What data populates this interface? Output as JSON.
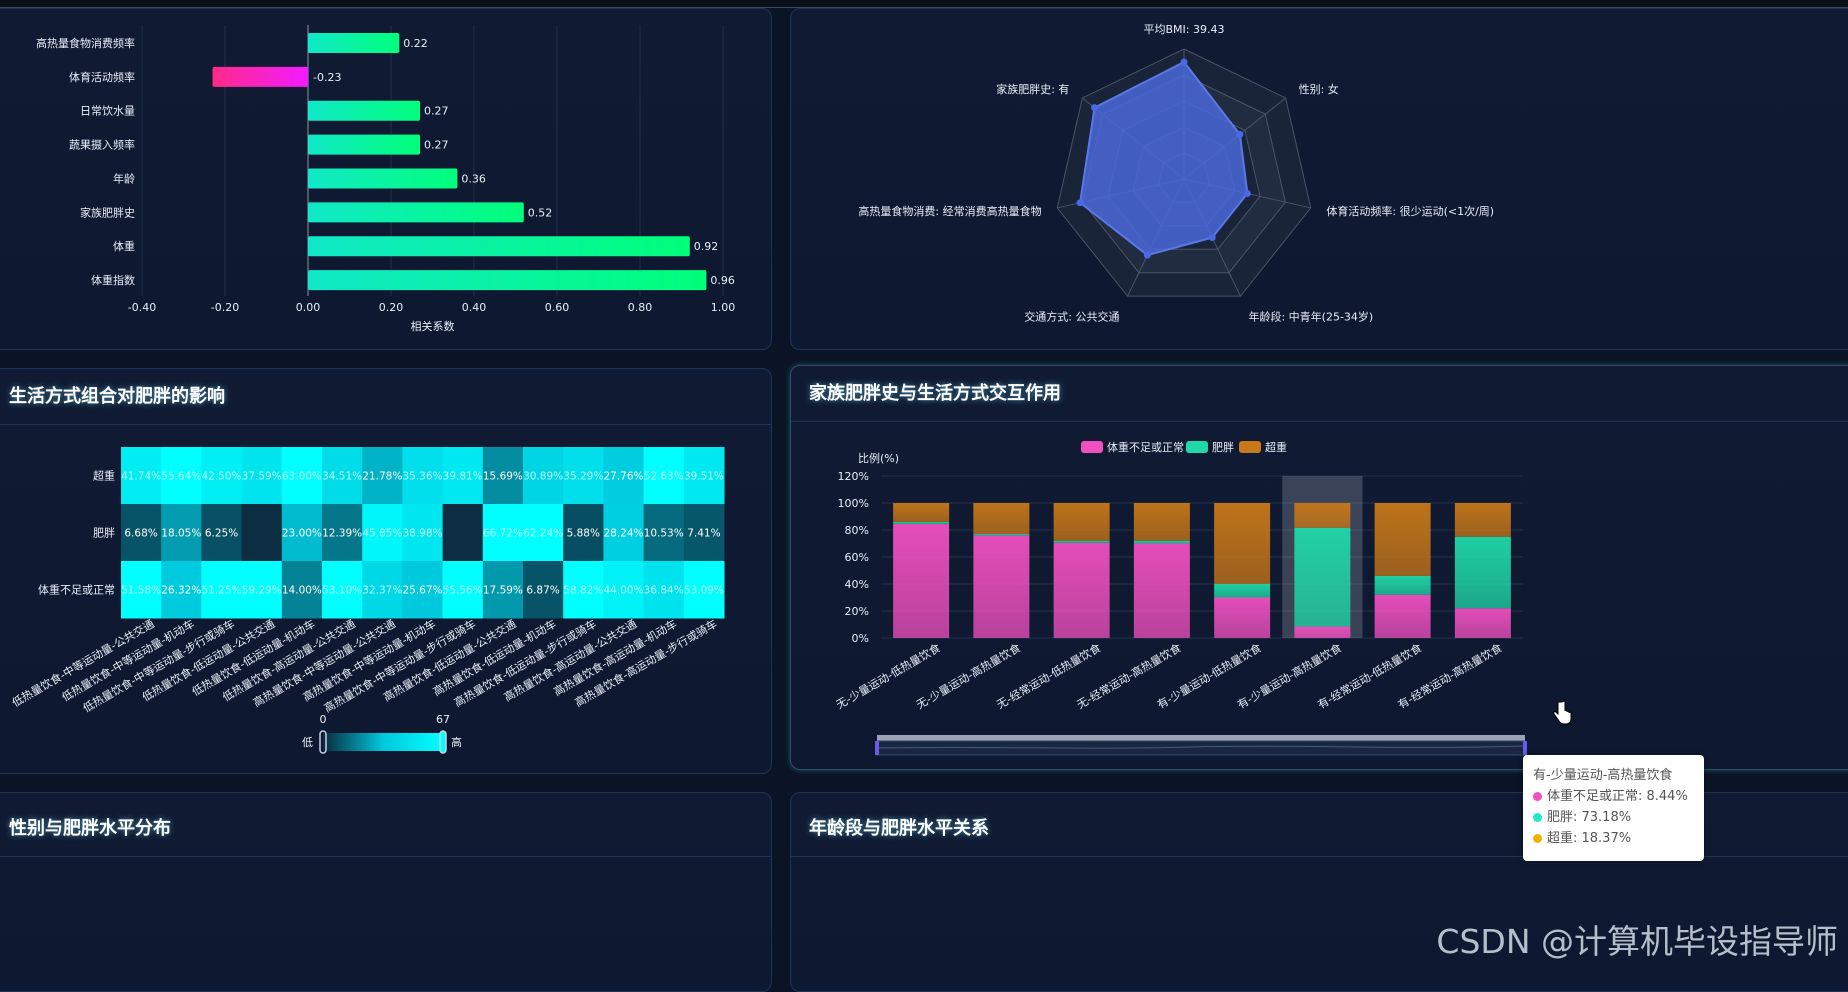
{
  "watermark": "CSDN @计算机毕设指导师",
  "panels": {
    "heatmap_title": "生活方式组合对肥胖的影响",
    "family_title": "家族肥胖史与生活方式交互作用",
    "bottom_left_title": "性别与肥胖水平分布",
    "bottom_right_title": "年龄段与肥胖水平关系"
  },
  "chart_data": [
    {
      "type": "bar",
      "orientation": "horizontal",
      "categories": [
        "高热量食物消费频率",
        "体育活动频率",
        "日常饮水量",
        "蔬果摄入频率",
        "年龄",
        "家族肥胖史",
        "体重",
        "体重指数"
      ],
      "values": [
        0.22,
        -0.23,
        0.27,
        0.27,
        0.36,
        0.52,
        0.92,
        0.96
      ],
      "value_labels": [
        "0.22",
        "-0.23",
        "0.27",
        "0.27",
        "0.36",
        "0.52",
        "0.92",
        "0.96"
      ],
      "xlabel": "相关系数",
      "xlim": [
        -0.4,
        1.0
      ],
      "xticks": [
        "-0.40",
        "-0.20",
        "0.00",
        "0.20",
        "0.40",
        "0.60",
        "0.80",
        "1.00"
      ],
      "colors": {
        "positive_start": "#11e8c8",
        "positive_end": "#00ff7a",
        "negative_start": "#ff2a88",
        "negative_end": "#f21cff"
      }
    },
    {
      "type": "radar",
      "indicators": [
        "平均BMI: 39.43",
        "性别: 女",
        "体育活动频率: 很少运动(<1次/周)",
        "年龄段: 中青年(25-34岁)",
        "交通方式: 公共交通",
        "高热量食物消费: 经常消费高热量食物",
        "家族肥胖史: 有"
      ],
      "values": [
        0.9,
        0.55,
        0.5,
        0.5,
        0.65,
        0.82,
        0.88
      ],
      "color": "#4a68d8"
    },
    {
      "type": "heatmap",
      "rows": [
        "超重",
        "肥胖",
        "体重不足或正常"
      ],
      "columns": [
        "低热量饮食-中等运动量-公共交通",
        "低热量饮食-中等运动量-机动车",
        "低热量饮食-中等运动量-步行或骑车",
        "低热量饮食-低运动量-公共交通",
        "低热量饮食-低运动量-机动车",
        "低热量饮食-高运动量-公共交通",
        "高热量饮食-中等运动量-公共交通",
        "高热量饮食-中等运动量-机动车",
        "高热量饮食-中等运动量-步行或骑车",
        "高热量饮食-低运动量-公共交通",
        "高热量饮食-低运动量-机动车",
        "高热量饮食-低运动量-步行或骑车",
        "高热量饮食-高运动量-公共交通",
        "高热量饮食-高运动量-机动车",
        "高热量饮食-高运动量-步行或骑车"
      ],
      "values": [
        [
          41.74,
          55.64,
          42.5,
          37.59,
          63.0,
          34.51,
          21.78,
          35.36,
          39.81,
          15.69,
          30.89,
          35.29,
          27.76,
          52.63,
          39.51
        ],
        [
          6.68,
          18.05,
          6.25,
          null,
          23.0,
          12.39,
          45.85,
          38.98,
          null,
          66.72,
          62.24,
          5.88,
          28.24,
          10.53,
          7.41
        ],
        [
          51.58,
          26.32,
          51.25,
          59.29,
          14.0,
          53.1,
          32.37,
          25.67,
          55.56,
          17.59,
          6.87,
          58.82,
          44.0,
          36.84,
          53.09
        ]
      ],
      "labels": [
        [
          "41.74%",
          "55.64%",
          "42.50%",
          "37.59%",
          "63.00%",
          "34.51%",
          "21.78%",
          "35.36%",
          "39.81%",
          "15.69%",
          "30.89%",
          "35.29%",
          "27.76%",
          "52.63%",
          "39.51%"
        ],
        [
          "6.68%",
          "18.05%",
          "6.25%",
          "",
          "23.00%",
          "12.39%",
          "45.85%",
          "38.98%",
          "",
          "66.72%",
          "62.24%",
          "5.88%",
          "28.24%",
          "10.53%",
          "7.41%"
        ],
        [
          "51.58%",
          "26.32%",
          "51.25%",
          "59.29%",
          "14.00%",
          "53.10%",
          "32.37%",
          "25.67%",
          "55.56%",
          "17.59%",
          "6.87%",
          "58.82%",
          "44.00%",
          "36.84%",
          "53.09%"
        ]
      ],
      "visual_map": {
        "min": "0",
        "max": "67",
        "low_label": "低",
        "high_label": "高"
      }
    },
    {
      "type": "bar",
      "stacked": true,
      "categories": [
        "无-少量运动-低热量饮食",
        "无-少量运动-高热量饮食",
        "无-经常运动-低热量饮食",
        "无-经常运动-高热量饮食",
        "有-少量运动-低热量饮食",
        "有-少量运动-高热量饮食",
        "有-经常运动-低热量饮食",
        "有-经常运动-高热量饮食"
      ],
      "series": [
        {
          "name": "体重不足或正常",
          "color": "#f050c0",
          "values": [
            84.5,
            76.0,
            70.5,
            70.0,
            30.0,
            8.44,
            32.0,
            22.0
          ]
        },
        {
          "name": "肥胖",
          "color": "#20d8a8",
          "values": [
            1.5,
            1.0,
            1.5,
            2.0,
            10.0,
            73.18,
            14.0,
            53.0
          ]
        },
        {
          "name": "超重",
          "color": "#c87818",
          "values": [
            14.0,
            23.0,
            28.0,
            28.0,
            60.0,
            18.37,
            54.0,
            25.0
          ]
        }
      ],
      "ylabel": "比例(%)",
      "ylim": [
        0,
        120
      ],
      "yticks": [
        "0%",
        "20%",
        "40%",
        "60%",
        "80%",
        "100%",
        "120%"
      ],
      "highlight_index": 5,
      "tooltip": {
        "title": "有-少量运动-高热量饮食",
        "rows": [
          {
            "label": "体重不足或正常: 8.44%",
            "color": "#f050c0"
          },
          {
            "label": "肥胖: 73.18%",
            "color": "#20d8a8"
          },
          {
            "label": "超重: 18.37%",
            "color": "#f0b400"
          }
        ]
      }
    }
  ]
}
